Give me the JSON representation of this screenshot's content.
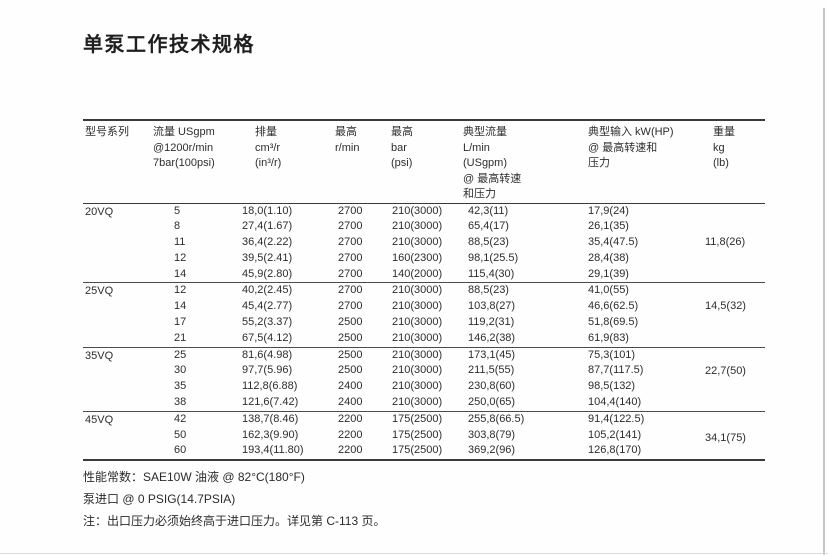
{
  "page": {
    "title": "单泵工作技术规格"
  },
  "table": {
    "headers": {
      "model": "型号系列",
      "flow": [
        "流量 USgpm",
        "@1200r/min",
        "7bar(100psi)"
      ],
      "displacement": [
        "排量",
        "cm³/r",
        "(in³/r)"
      ],
      "speed": [
        "最高",
        "r/min"
      ],
      "pressure": [
        "最高",
        "bar",
        "(psi)"
      ],
      "typical_flow": [
        "典型流量",
        "L/min",
        "(USgpm)",
        "@ 最高转速",
        "和压力"
      ],
      "typical_input": [
        "典型输入 kW(HP)",
        "@ 最高转速和",
        "压力"
      ],
      "weight": [
        "重量",
        "kg",
        "(lb)"
      ]
    },
    "groups": [
      {
        "model": "20VQ",
        "weight": "11,8(26)",
        "rows": [
          {
            "flow": "5",
            "displacement": "18,0(1.10)",
            "speed": "2700",
            "pressure": "210(3000)",
            "typical_flow": "42,3(11)",
            "typical_input": "17,9(24)"
          },
          {
            "flow": "8",
            "displacement": "27,4(1.67)",
            "speed": "2700",
            "pressure": "210(3000)",
            "typical_flow": "65,4(17)",
            "typical_input": "26,1(35)"
          },
          {
            "flow": "11",
            "displacement": "36,4(2.22)",
            "speed": "2700",
            "pressure": "210(3000)",
            "typical_flow": "88,5(23)",
            "typical_input": "35,4(47.5)"
          },
          {
            "flow": "12",
            "displacement": "39,5(2.41)",
            "speed": "2700",
            "pressure": "160(2300)",
            "typical_flow": "98,1(25.5)",
            "typical_input": "28,4(38)"
          },
          {
            "flow": "14",
            "displacement": "45,9(2.80)",
            "speed": "2700",
            "pressure": "140(2000)",
            "typical_flow": "115,4(30)",
            "typical_input": "29,1(39)"
          }
        ]
      },
      {
        "model": "25VQ",
        "weight": "14,5(32)",
        "rows": [
          {
            "flow": "12",
            "displacement": "40,2(2.45)",
            "speed": "2700",
            "pressure": "210(3000)",
            "typical_flow": "88,5(23)",
            "typical_input": "41,0(55)"
          },
          {
            "flow": "14",
            "displacement": "45,4(2.77)",
            "speed": "2700",
            "pressure": "210(3000)",
            "typical_flow": "103,8(27)",
            "typical_input": "46,6(62.5)"
          },
          {
            "flow": "17",
            "displacement": "55,2(3.37)",
            "speed": "2500",
            "pressure": "210(3000)",
            "typical_flow": "119,2(31)",
            "typical_input": "51,8(69.5)"
          },
          {
            "flow": "21",
            "displacement": "67,5(4.12)",
            "speed": "2500",
            "pressure": "210(3000)",
            "typical_flow": "146,2(38)",
            "typical_input": "61,9(83)"
          }
        ]
      },
      {
        "model": "35VQ",
        "weight": "22,7(50)",
        "rows": [
          {
            "flow": "25",
            "displacement": "81,6(4.98)",
            "speed": "2500",
            "pressure": "210(3000)",
            "typical_flow": "173,1(45)",
            "typical_input": "75,3(101)"
          },
          {
            "flow": "30",
            "displacement": "97,7(5.96)",
            "speed": "2500",
            "pressure": "210(3000)",
            "typical_flow": "211,5(55)",
            "typical_input": "87,7(117.5)"
          },
          {
            "flow": "35",
            "displacement": "112,8(6.88)",
            "speed": "2400",
            "pressure": "210(3000)",
            "typical_flow": "230,8(60)",
            "typical_input": "98,5(132)"
          },
          {
            "flow": "38",
            "displacement": "121,6(7.42)",
            "speed": "2400",
            "pressure": "210(3000)",
            "typical_flow": "250,0(65)",
            "typical_input": "104,4(140)"
          }
        ]
      },
      {
        "model": "45VQ",
        "weight": "34,1(75)",
        "rows": [
          {
            "flow": "42",
            "displacement": "138,7(8.46)",
            "speed": "2200",
            "pressure": "175(2500)",
            "typical_flow": "255,8(66.5)",
            "typical_input": "91,4(122.5)"
          },
          {
            "flow": "50",
            "displacement": "162,3(9.90)",
            "speed": "2200",
            "pressure": "175(2500)",
            "typical_flow": "303,8(79)",
            "typical_input": "105,2(141)"
          },
          {
            "flow": "60",
            "displacement": "193,4(11.80)",
            "speed": "2200",
            "pressure": "175(2500)",
            "typical_flow": "369,2(96)",
            "typical_input": "126,8(170)"
          }
        ]
      }
    ]
  },
  "notes": [
    "性能常数：SAE10W 油液 @ 82°C(180°F)",
    "泵进口 @ 0 PSIG(14.7PSIA)",
    "注：出口压力必须始终高于进口压力。详见第 C-113 页。"
  ]
}
